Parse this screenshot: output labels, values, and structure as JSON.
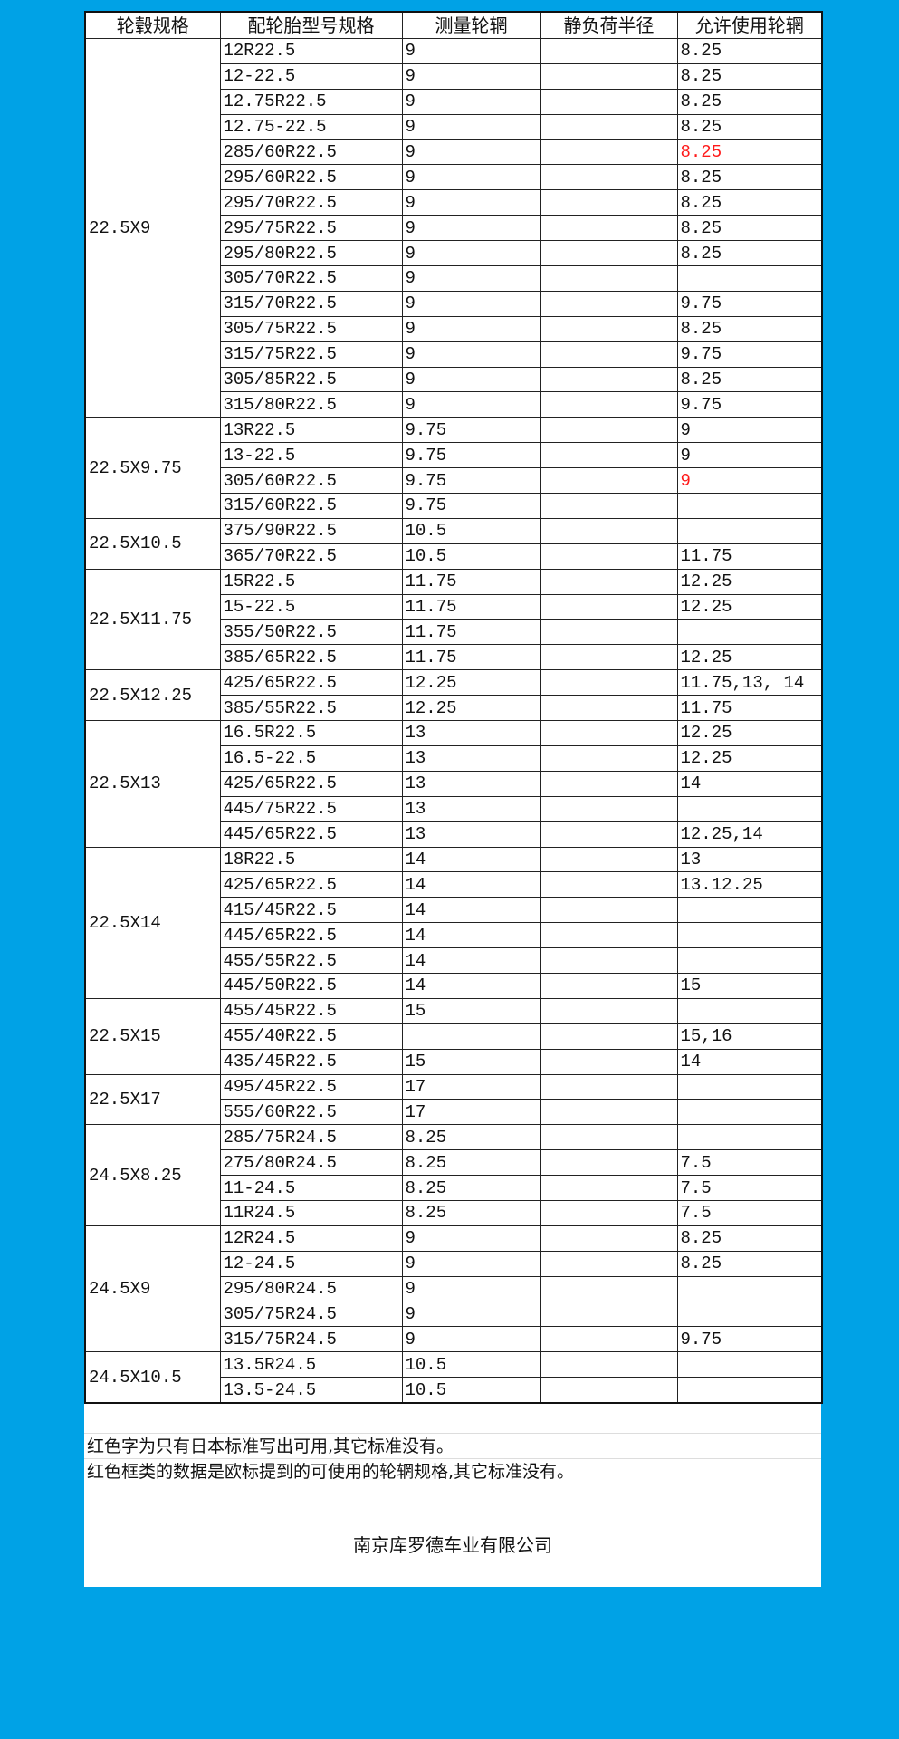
{
  "colors": {
    "background": "#00a2e6",
    "red_text": "#ff1a1a"
  },
  "headers": [
    "轮毂规格",
    "配轮胎型号规格",
    "测量轮辋",
    "静负荷半径",
    "允许使用轮辋"
  ],
  "groups": [
    {
      "hub": "22.5X9",
      "rows": [
        {
          "tire": "12R22.5",
          "rim": "9",
          "radius": "",
          "allowed": "8.25"
        },
        {
          "tire": "12-22.5",
          "rim": "9",
          "radius": "",
          "allowed": "8.25"
        },
        {
          "tire": "12.75R22.5",
          "rim": "9",
          "radius": "",
          "allowed": "8.25"
        },
        {
          "tire": "12.75-22.5",
          "rim": "9",
          "radius": "",
          "allowed": "8.25"
        },
        {
          "tire": "285/60R22.5",
          "rim": "9",
          "radius": "",
          "allowed": "8.25",
          "red": true
        },
        {
          "tire": "295/60R22.5",
          "rim": "9",
          "radius": "",
          "allowed": "8.25"
        },
        {
          "tire": "295/70R22.5",
          "rim": "9",
          "radius": "",
          "allowed": "8.25"
        },
        {
          "tire": "295/75R22.5",
          "rim": "9",
          "radius": "",
          "allowed": "8.25"
        },
        {
          "tire": "295/80R22.5",
          "rim": "9",
          "radius": "",
          "allowed": "8.25"
        },
        {
          "tire": "305/70R22.5",
          "rim": "9",
          "radius": "",
          "allowed": ""
        },
        {
          "tire": "315/70R22.5",
          "rim": "9",
          "radius": "",
          "allowed": "9.75"
        },
        {
          "tire": "305/75R22.5",
          "rim": "9",
          "radius": "",
          "allowed": "8.25"
        },
        {
          "tire": "315/75R22.5",
          "rim": "9",
          "radius": "",
          "allowed": "9.75"
        },
        {
          "tire": "305/85R22.5",
          "rim": "9",
          "radius": "",
          "allowed": "8.25"
        },
        {
          "tire": "315/80R22.5",
          "rim": "9",
          "radius": "",
          "allowed": "9.75"
        }
      ]
    },
    {
      "hub": "22.5X9.75",
      "rows": [
        {
          "tire": "13R22.5",
          "rim": "9.75",
          "radius": "",
          "allowed": "9"
        },
        {
          "tire": "13-22.5",
          "rim": "9.75",
          "radius": "",
          "allowed": "9"
        },
        {
          "tire": "305/60R22.5",
          "rim": "9.75",
          "radius": "",
          "allowed": "9",
          "red": true
        },
        {
          "tire": "315/60R22.5",
          "rim": "9.75",
          "radius": "",
          "allowed": ""
        }
      ]
    },
    {
      "hub": "22.5X10.5",
      "rows": [
        {
          "tire": "375/90R22.5",
          "rim": "10.5",
          "radius": "",
          "allowed": ""
        },
        {
          "tire": "365/70R22.5",
          "rim": "10.5",
          "radius": "",
          "allowed": "11.75"
        }
      ]
    },
    {
      "hub": "22.5X11.75",
      "rows": [
        {
          "tire": "15R22.5",
          "rim": "11.75",
          "radius": "",
          "allowed": "12.25"
        },
        {
          "tire": "15-22.5",
          "rim": "11.75",
          "radius": "",
          "allowed": "12.25"
        },
        {
          "tire": "355/50R22.5",
          "rim": "11.75",
          "radius": "",
          "allowed": ""
        },
        {
          "tire": "385/65R22.5",
          "rim": "11.75",
          "radius": "",
          "allowed": "12.25"
        }
      ]
    },
    {
      "hub": "22.5X12.25",
      "rows": [
        {
          "tire": "425/65R22.5",
          "rim": "12.25",
          "radius": "",
          "allowed": "11.75,13, 14"
        },
        {
          "tire": "385/55R22.5",
          "rim": "12.25",
          "radius": "",
          "allowed": "11.75"
        }
      ]
    },
    {
      "hub": "22.5X13",
      "rows": [
        {
          "tire": "16.5R22.5",
          "rim": "13",
          "radius": "",
          "allowed": "12.25"
        },
        {
          "tire": "16.5-22.5",
          "rim": "13",
          "radius": "",
          "allowed": "12.25"
        },
        {
          "tire": "425/65R22.5",
          "rim": "13",
          "radius": "",
          "allowed": "14"
        },
        {
          "tire": "445/75R22.5",
          "rim": "13",
          "radius": "",
          "allowed": ""
        },
        {
          "tire": "445/65R22.5",
          "rim": "13",
          "radius": "",
          "allowed": "12.25,14"
        }
      ]
    },
    {
      "hub": "22.5X14",
      "rows": [
        {
          "tire": "18R22.5",
          "rim": "14",
          "radius": "",
          "allowed": "13"
        },
        {
          "tire": "425/65R22.5",
          "rim": "14",
          "radius": "",
          "allowed": "13.12.25"
        },
        {
          "tire": "415/45R22.5",
          "rim": "14",
          "radius": "",
          "allowed": ""
        },
        {
          "tire": "445/65R22.5",
          "rim": "14",
          "radius": "",
          "allowed": ""
        },
        {
          "tire": "455/55R22.5",
          "rim": "14",
          "radius": "",
          "allowed": ""
        },
        {
          "tire": "445/50R22.5",
          "rim": "14",
          "radius": "",
          "allowed": "15"
        }
      ]
    },
    {
      "hub": "22.5X15",
      "rows": [
        {
          "tire": "455/45R22.5",
          "rim": "15",
          "radius": "",
          "allowed": ""
        },
        {
          "tire": "455/40R22.5",
          "rim": "",
          "radius": "",
          "allowed": "15,16"
        },
        {
          "tire": "435/45R22.5",
          "rim": "15",
          "radius": "",
          "allowed": "14"
        }
      ]
    },
    {
      "hub": "22.5X17",
      "rows": [
        {
          "tire": "495/45R22.5",
          "rim": "17",
          "radius": "",
          "allowed": ""
        },
        {
          "tire": "555/60R22.5",
          "rim": "17",
          "radius": "",
          "allowed": ""
        }
      ]
    },
    {
      "hub": "24.5X8.25",
      "rows": [
        {
          "tire": "285/75R24.5",
          "rim": "8.25",
          "radius": "",
          "allowed": ""
        },
        {
          "tire": "275/80R24.5",
          "rim": "8.25",
          "radius": "",
          "allowed": "7.5"
        },
        {
          "tire": "11-24.5",
          "rim": "8.25",
          "radius": "",
          "allowed": "7.5"
        },
        {
          "tire": "11R24.5",
          "rim": "8.25",
          "radius": "",
          "allowed": "7.5"
        }
      ]
    },
    {
      "hub": "24.5X9",
      "rows": [
        {
          "tire": "12R24.5",
          "rim": "9",
          "radius": "",
          "allowed": "8.25"
        },
        {
          "tire": "12-24.5",
          "rim": "9",
          "radius": "",
          "allowed": "8.25"
        },
        {
          "tire": "295/80R24.5",
          "rim": "9",
          "radius": "",
          "allowed": ""
        },
        {
          "tire": "305/75R24.5",
          "rim": "9",
          "radius": "",
          "allowed": ""
        },
        {
          "tire": "315/75R24.5",
          "rim": "9",
          "radius": "",
          "allowed": "9.75"
        }
      ]
    },
    {
      "hub": "24.5X10.5",
      "rows": [
        {
          "tire": "13.5R24.5",
          "rim": "10.5",
          "radius": "",
          "allowed": ""
        },
        {
          "tire": "13.5-24.5",
          "rim": "10.5",
          "radius": "",
          "allowed": ""
        }
      ]
    }
  ],
  "notes": [
    "红色字为只有日本标准写出可用,其它标准没有。",
    "红色框类的数据是欧标提到的可使用的轮辋规格,其它标准没有。"
  ],
  "company": "南京库罗德车业有限公司"
}
